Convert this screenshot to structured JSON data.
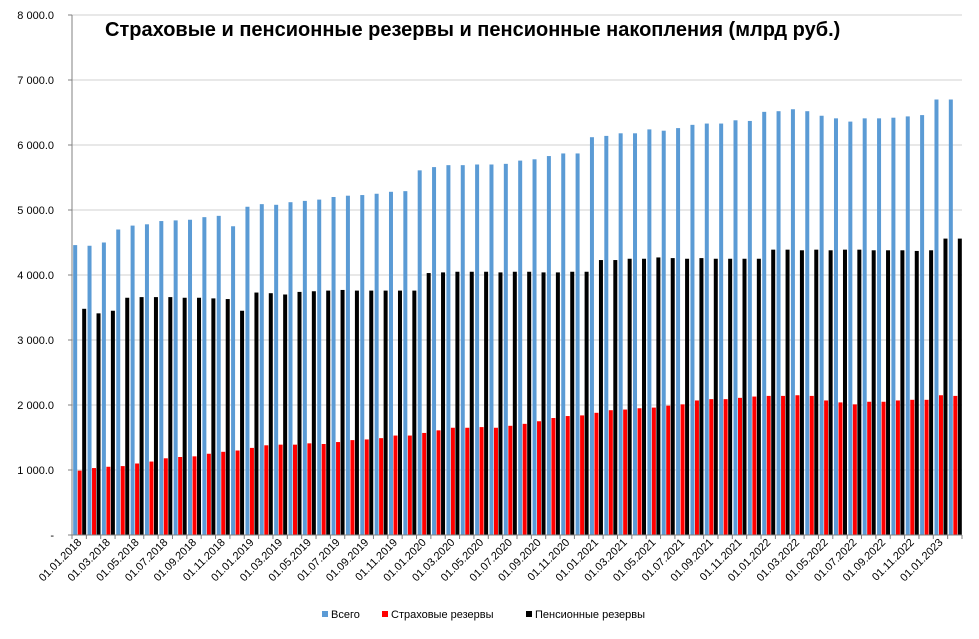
{
  "chart_data": {
    "type": "bar",
    "title": "Страховые и пенсионные резервы и пенсионные накопления (млрд руб.)",
    "ylim": [
      0,
      8000
    ],
    "yticks": [
      0,
      1000,
      2000,
      3000,
      4000,
      5000,
      6000,
      7000,
      8000
    ],
    "ytick_labels": [
      "-",
      "1 000.0",
      "2 000.0",
      "3 000.0",
      "4 000.0",
      "5 000.0",
      "6 000.0",
      "7 000.0",
      "8 000.0"
    ],
    "grid": true,
    "legend_position": "bottom",
    "categories": [
      "01.01.2018",
      "01.02.2018",
      "01.03.2018",
      "01.04.2018",
      "01.05.2018",
      "01.06.2018",
      "01.07.2018",
      "01.08.2018",
      "01.09.2018",
      "01.10.2018",
      "01.11.2018",
      "01.12.2018",
      "01.01.2019",
      "01.02.2019",
      "01.03.2019",
      "01.04.2019",
      "01.05.2019",
      "01.06.2019",
      "01.07.2019",
      "01.08.2019",
      "01.09.2019",
      "01.10.2019",
      "01.11.2019",
      "01.12.2019",
      "01.01.2020",
      "01.02.2020",
      "01.03.2020",
      "01.04.2020",
      "01.05.2020",
      "01.06.2020",
      "01.07.2020",
      "01.08.2020",
      "01.09.2020",
      "01.10.2020",
      "01.11.2020",
      "01.12.2020",
      "01.01.2021",
      "01.02.2021",
      "01.03.2021",
      "01.04.2021",
      "01.05.2021",
      "01.06.2021",
      "01.07.2021",
      "01.08.2021",
      "01.09.2021",
      "01.10.2021",
      "01.11.2021",
      "01.12.2021",
      "01.01.2022",
      "01.02.2022",
      "01.03.2022",
      "01.04.2022",
      "01.05.2022",
      "01.06.2022",
      "01.07.2022",
      "01.08.2022",
      "01.09.2022",
      "01.10.2022",
      "01.11.2022",
      "01.12.2022",
      "01.01.2023",
      "01.02.2023"
    ],
    "x_tick_labels_shown": [
      "01.01.2018",
      "01.03.2018",
      "01.05.2018",
      "01.07.2018",
      "01.09.2018",
      "01.11.2018",
      "01.01.2019",
      "01.03.2019",
      "01.05.2019",
      "01.07.2019",
      "01.09.2019",
      "01.11.2019",
      "01.01.2020",
      "01.03.2020",
      "01.05.2020",
      "01.07.2020",
      "01.09.2020",
      "01.11.2020",
      "01.01.2021",
      "01.03.2021",
      "01.05.2021",
      "01.07.2021",
      "01.09.2021",
      "01.11.2021",
      "01.01.2022",
      "01.03.2022",
      "01.05.2022",
      "01.07.2022",
      "01.09.2022",
      "01.11.2022",
      "01.01.2023"
    ],
    "series": [
      {
        "name": "Всего",
        "color": "#5B9BD5",
        "values": [
          4460,
          4450,
          4500,
          4700,
          4760,
          4780,
          4830,
          4840,
          4850,
          4890,
          4910,
          4750,
          5050,
          5090,
          5080,
          5120,
          5140,
          5160,
          5200,
          5220,
          5230,
          5250,
          5280,
          5290,
          5610,
          5660,
          5690,
          5690,
          5700,
          5700,
          5710,
          5760,
          5780,
          5830,
          5870,
          5870,
          6120,
          6140,
          6180,
          6180,
          6240,
          6220,
          6260,
          6310,
          6330,
          6330,
          6380,
          6370,
          6510,
          6520,
          6550,
          6520,
          6450,
          6410,
          6360,
          6410,
          6410,
          6420,
          6440,
          6460,
          6700,
          6700
        ]
      },
      {
        "name": "Страховые  резервы",
        "color": "#FF0000",
        "values": [
          990,
          1030,
          1050,
          1060,
          1100,
          1130,
          1180,
          1200,
          1210,
          1250,
          1280,
          1300,
          1340,
          1380,
          1390,
          1390,
          1410,
          1400,
          1430,
          1460,
          1470,
          1490,
          1530,
          1530,
          1570,
          1610,
          1650,
          1650,
          1660,
          1650,
          1680,
          1710,
          1750,
          1800,
          1830,
          1840,
          1880,
          1920,
          1930,
          1950,
          1960,
          1990,
          2010,
          2070,
          2090,
          2090,
          2110,
          2130,
          2140,
          2140,
          2150,
          2140,
          2070,
          2040,
          2010,
          2050,
          2050,
          2070,
          2080,
          2080,
          2150,
          2140
        ]
      },
      {
        "name": "Пенсионные  резервы",
        "color": "#000000",
        "values": [
          3480,
          3410,
          3450,
          3650,
          3660,
          3660,
          3660,
          3650,
          3650,
          3640,
          3630,
          3450,
          3730,
          3720,
          3700,
          3740,
          3750,
          3760,
          3770,
          3760,
          3760,
          3760,
          3760,
          3760,
          4030,
          4040,
          4050,
          4050,
          4050,
          4040,
          4050,
          4050,
          4040,
          4040,
          4050,
          4050,
          4230,
          4230,
          4250,
          4250,
          4270,
          4260,
          4250,
          4260,
          4250,
          4250,
          4250,
          4250,
          4390,
          4390,
          4380,
          4390,
          4380,
          4390,
          4390,
          4380,
          4380,
          4380,
          4370,
          4380,
          4560,
          4560
        ]
      }
    ]
  }
}
